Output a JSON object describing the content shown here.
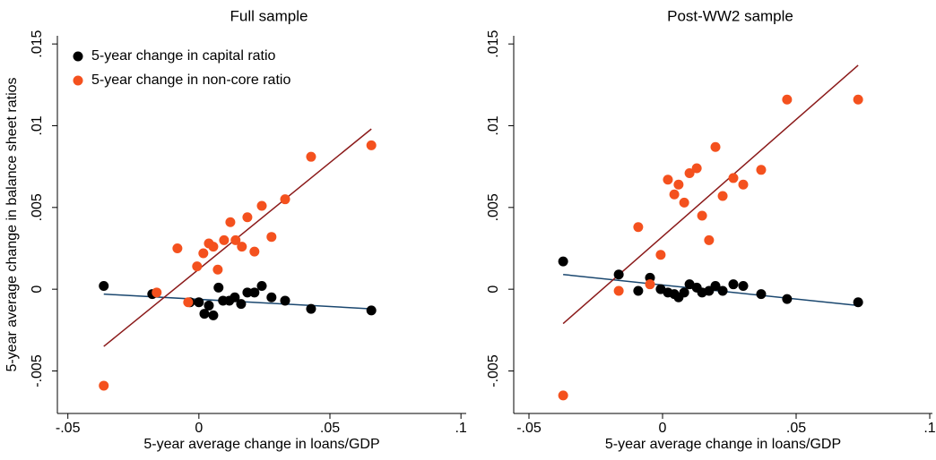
{
  "chart_data": [
    {
      "type": "scatter",
      "title": "Full sample",
      "xlabel": "5-year average change in loans/GDP",
      "ylabel": "5-year average change in balance sheet ratios",
      "xlim": [
        -0.054,
        0.102
      ],
      "ylim": [
        -0.0076,
        0.0155
      ],
      "xticks": [
        {
          "value": -0.05,
          "label": "-.05"
        },
        0,
        {
          "value": 0.05,
          "label": ".05"
        },
        {
          "value": 0.1,
          "label": ".1"
        }
      ],
      "yticks": [
        {
          "value": -0.005,
          "label": "-.005"
        },
        0,
        {
          "value": 0.005,
          "label": ".005"
        },
        {
          "value": 0.01,
          "label": ".01"
        },
        {
          "value": 0.015,
          "label": ".015"
        }
      ],
      "legend": "upper left",
      "series": [
        {
          "name": "5-year change in capital ratio",
          "color": "#000000",
          "x": [
            -0.0363,
            -0.0178,
            -0.0034,
            0,
            0.0021,
            0.0038,
            0.0055,
            0.0075,
            0.0092,
            0.0116,
            0.0137,
            0.0161,
            0.0185,
            0.0212,
            0.024,
            0.0277,
            0.0329,
            0.0428,
            0.0658
          ],
          "values": [
            0.0002,
            -0.0003,
            -0.0008,
            -0.0008,
            -0.0015,
            -0.001,
            -0.0016,
            0.0001,
            -0.0007,
            -0.0007,
            -0.0005,
            -0.0009,
            -0.0002,
            -0.0002,
            0.0002,
            -0.0005,
            -0.0007,
            -0.0012,
            -0.0013
          ],
          "fit": {
            "color": "#1a476f",
            "x": [
              -0.0363,
              0.0658
            ],
            "values": [
              -0.0003,
              -0.0012
            ]
          }
        },
        {
          "name": "5-year change in non-core ratio",
          "color": "#f4511e",
          "x": [
            -0.0363,
            -0.0161,
            -0.0082,
            -0.0041,
            -0.0007,
            0.0017,
            0.0038,
            0.0055,
            0.0072,
            0.0096,
            0.012,
            0.014,
            0.0164,
            0.0185,
            0.0212,
            0.024,
            0.0277,
            0.0329,
            0.0428,
            0.0658
          ],
          "values": [
            -0.0059,
            -0.0002,
            0.0025,
            -0.0008,
            0.0014,
            0.0022,
            0.0028,
            0.0026,
            0.0012,
            0.003,
            0.0041,
            0.003,
            0.0026,
            0.0044,
            0.0023,
            0.0051,
            0.0032,
            0.0055,
            0.0081,
            0.0088
          ],
          "fit": {
            "color": "#8b1a1a",
            "x": [
              -0.0363,
              0.0658
            ],
            "values": [
              -0.0035,
              0.0098
            ]
          }
        }
      ]
    },
    {
      "type": "scatter",
      "title": "Post-WW2 sample",
      "xlabel": "5-year average change in loans/GDP",
      "xlim": [
        -0.0557,
        0.101
      ],
      "ylim": [
        -0.0076,
        0.0155
      ],
      "xticks": [
        {
          "value": -0.05,
          "label": "-.05"
        },
        0,
        {
          "value": 0.05,
          "label": ".05"
        },
        {
          "value": 0.1,
          "label": ".1"
        }
      ],
      "yticks": [
        {
          "value": -0.005,
          "label": "-.005"
        },
        0,
        {
          "value": 0.005,
          "label": ".005"
        },
        {
          "value": 0.01,
          "label": ".01"
        },
        {
          "value": 0.015,
          "label": ".015"
        }
      ],
      "series": [
        {
          "color": "#000000",
          "x": [
            -0.0372,
            -0.0164,
            -0.0091,
            -0.0047,
            -0.0007,
            0.002,
            0.0044,
            0.006,
            0.0081,
            0.0101,
            0.0128,
            0.0148,
            0.0174,
            0.0198,
            0.0225,
            0.0265,
            0.0302,
            0.0369,
            0.0466,
            0.0732
          ],
          "values": [
            0.0017,
            0.0009,
            -0.0001,
            0.0007,
            0,
            -0.0002,
            -0.0003,
            -0.0005,
            -0.0002,
            0.0003,
            0.0001,
            -0.0002,
            -0.0001,
            0.0002,
            -0.0001,
            0.0003,
            0.0002,
            -0.0003,
            -0.0006,
            -0.0008
          ],
          "fit": {
            "color": "#1a476f",
            "x": [
              -0.0372,
              0.0732
            ],
            "values": [
              0.0009,
              -0.001
            ]
          }
        },
        {
          "color": "#f4511e",
          "x": [
            -0.0372,
            -0.0164,
            -0.0091,
            -0.0047,
            -0.0007,
            0.002,
            0.0044,
            0.006,
            0.0081,
            0.0101,
            0.0128,
            0.0148,
            0.0174,
            0.0198,
            0.0225,
            0.0265,
            0.0302,
            0.0369,
            0.0466,
            0.0732
          ],
          "values": [
            -0.0065,
            -0.0001,
            0.0038,
            0.0003,
            0.0021,
            0.0067,
            0.0058,
            0.0064,
            0.0053,
            0.0071,
            0.0074,
            0.0045,
            0.003,
            0.0087,
            0.0057,
            0.0068,
            0.0064,
            0.0073,
            0.0116,
            0.0116
          ],
          "fit": {
            "color": "#8b1a1a",
            "x": [
              -0.0372,
              0.0732
            ],
            "values": [
              -0.0021,
              0.0137
            ]
          }
        }
      ]
    }
  ]
}
